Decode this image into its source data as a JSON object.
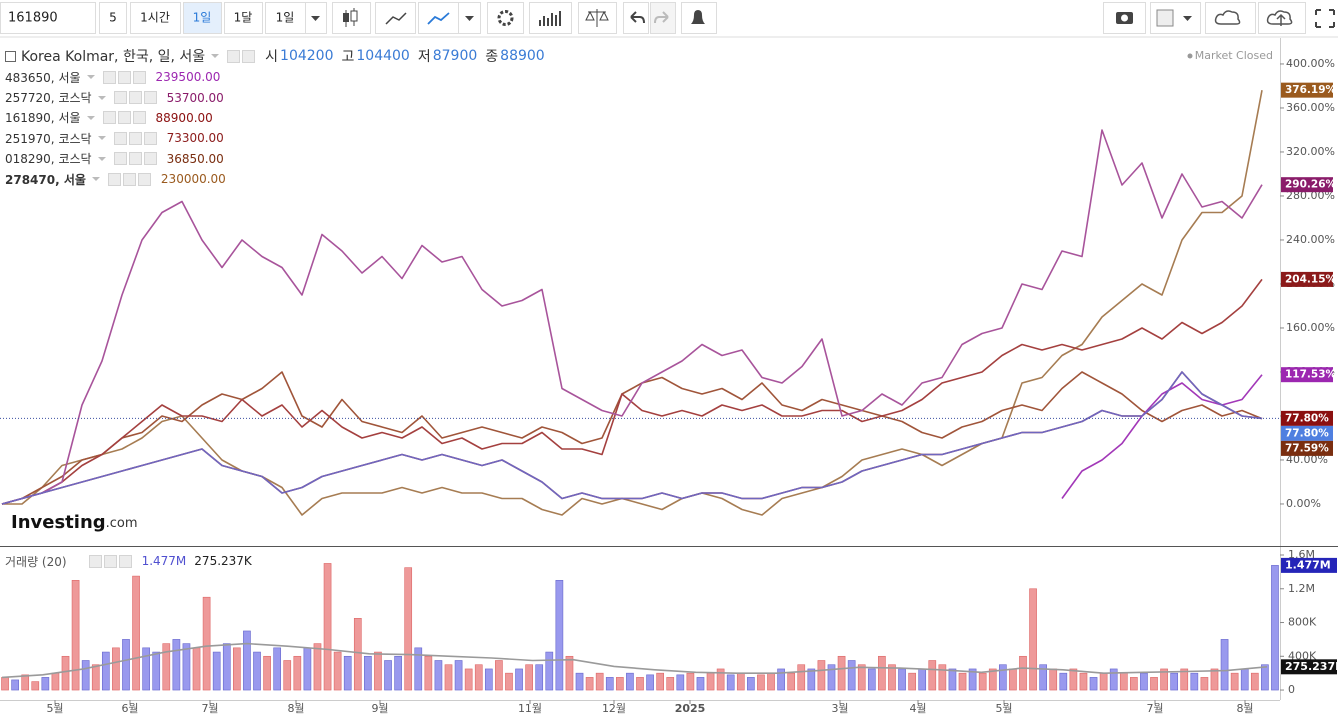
{
  "toolbar": {
    "symbol": "161890",
    "intervals": [
      "5",
      "1시간",
      "1일",
      "1달",
      "1일"
    ]
  },
  "market_status": "Market Closed",
  "logo": {
    "brand": "Investing",
    "suffix": ".com"
  },
  "chart_data": [
    {
      "type": "line",
      "ohlc": [
        {
          "label": "시",
          "value": 104200
        },
        {
          "label": "고",
          "value": 104400
        },
        {
          "label": "저",
          "value": 87900
        },
        {
          "label": "종",
          "value": 88900
        }
      ],
      "xlim": [
        -0.1,
        63.9
      ],
      "xticks": [
        {
          "value": 2.65,
          "label": "5월"
        },
        {
          "value": 6.4,
          "label": "6월"
        },
        {
          "value": 10.4,
          "label": "7월"
        },
        {
          "value": 14.7,
          "label": "8월"
        },
        {
          "value": 18.9,
          "label": "9월"
        },
        {
          "value": 26.4,
          "label": "11월"
        },
        {
          "value": 30.6,
          "label": "12월"
        },
        {
          "value": 34.4,
          "label": "2025"
        },
        {
          "value": 41.9,
          "label": "3월"
        },
        {
          "value": 45.8,
          "label": "4월"
        },
        {
          "value": 50.1,
          "label": "5월"
        },
        {
          "value": 57.65,
          "label": "7월"
        },
        {
          "value": 62.15,
          "label": "8월"
        }
      ],
      "ylim": [
        -37.3,
        423.6
      ],
      "yticks": [
        {
          "value": 0,
          "label": "0.00%"
        },
        {
          "value": 40,
          "label": "40.00%"
        },
        {
          "value": 80,
          "label": "80.00%"
        },
        {
          "value": 120,
          "label": "120.00%"
        },
        {
          "value": 160,
          "label": "160.00%"
        },
        {
          "value": 200,
          "label": "200.00%"
        },
        {
          "value": 240,
          "label": "240.00%"
        },
        {
          "value": 280,
          "label": "280.00%"
        },
        {
          "value": 320,
          "label": "320.00%"
        },
        {
          "value": 360,
          "label": "360.00%"
        },
        {
          "value": 400,
          "label": "400.00%"
        }
      ],
      "grid": false,
      "series": [
        {
          "name": "Korea Kolmar, 한국, 일, 서울",
          "color": "#6f67c0",
          "label_color": "#4f7fe0",
          "values": [
            0,
            5,
            10,
            15,
            20,
            25,
            30,
            35,
            40,
            45,
            50,
            35,
            30,
            25,
            10,
            15,
            25,
            30,
            35,
            40,
            45,
            40,
            45,
            40,
            35,
            40,
            30,
            20,
            5,
            10,
            5,
            5,
            5,
            10,
            5,
            10,
            10,
            5,
            5,
            10,
            15,
            15,
            20,
            30,
            35,
            40,
            45,
            45,
            50,
            55,
            60,
            65,
            65,
            70,
            75,
            85,
            80,
            80,
            95,
            120,
            100,
            90,
            80,
            77.8
          ],
          "value_labels": {
            "63": "77.80%"
          }
        },
        {
          "name": "483650, 서울",
          "price": "239500.00",
          "color": "#a238b8",
          "label_color": "#9c27b0",
          "values": [
            null,
            null,
            null,
            null,
            null,
            null,
            null,
            null,
            null,
            null,
            null,
            null,
            null,
            null,
            null,
            null,
            null,
            null,
            null,
            null,
            null,
            null,
            null,
            null,
            null,
            null,
            null,
            null,
            null,
            null,
            null,
            null,
            null,
            null,
            null,
            null,
            null,
            null,
            null,
            null,
            null,
            null,
            null,
            null,
            null,
            null,
            null,
            null,
            null,
            null,
            null,
            null,
            null,
            5,
            30,
            40,
            55,
            80,
            100,
            110,
            95,
            90,
            95,
            117.53
          ],
          "value_labels": {
            "63": "117.53%"
          }
        },
        {
          "name": "257720, 코스닥",
          "price": "53700.00",
          "color": "#a8549b",
          "label_color": "#8a1c6a",
          "values": [
            0,
            5,
            10,
            20,
            90,
            130,
            190,
            240,
            265,
            275,
            240,
            215,
            240,
            225,
            215,
            190,
            245,
            230,
            210,
            225,
            205,
            235,
            220,
            225,
            195,
            180,
            185,
            195,
            105,
            95,
            85,
            80,
            110,
            120,
            130,
            145,
            135,
            140,
            115,
            110,
            125,
            150,
            80,
            85,
            100,
            90,
            110,
            115,
            145,
            155,
            160,
            200,
            195,
            230,
            225,
            340,
            290,
            310,
            260,
            300,
            270,
            275,
            260,
            290.26
          ],
          "value_labels": {
            "63": "290.26%"
          }
        },
        {
          "name": "161890, 서울",
          "price": "88900.00",
          "color": "#a33a3a",
          "label_color": "#8b1010",
          "values": [
            0,
            5,
            10,
            15,
            20,
            25,
            30,
            35,
            40,
            45,
            50,
            35,
            30,
            25,
            10,
            15,
            25,
            30,
            35,
            40,
            45,
            40,
            45,
            40,
            35,
            40,
            30,
            20,
            5,
            10,
            5,
            5,
            5,
            10,
            5,
            10,
            10,
            5,
            5,
            10,
            15,
            15,
            20,
            30,
            35,
            40,
            45,
            45,
            50,
            55,
            60,
            65,
            65,
            70,
            75,
            85,
            80,
            80,
            95,
            120,
            100,
            90,
            80,
            77.8
          ],
          "value_labels": {
            "63": "77.80%"
          }
        },
        {
          "name": "251970, 코스닥",
          "price": "73300.00",
          "color": "#a4403f",
          "label_color": "#8b1a1a",
          "values": [
            0,
            5,
            10,
            20,
            35,
            45,
            60,
            75,
            90,
            80,
            80,
            75,
            95,
            80,
            90,
            70,
            85,
            70,
            60,
            65,
            60,
            70,
            55,
            60,
            50,
            55,
            55,
            65,
            50,
            50,
            45,
            100,
            85,
            80,
            85,
            80,
            90,
            85,
            90,
            80,
            80,
            85,
            85,
            75,
            80,
            85,
            95,
            110,
            115,
            120,
            135,
            145,
            140,
            145,
            140,
            145,
            150,
            160,
            150,
            165,
            155,
            165,
            180,
            204.15
          ],
          "value_labels": {
            "63": "204.15%"
          }
        },
        {
          "name": "018290, 코스닥",
          "price": "36850.00",
          "color": "#a0553a",
          "label_color": "#7a2e10",
          "values": [
            0,
            5,
            15,
            25,
            40,
            45,
            60,
            65,
            80,
            75,
            90,
            100,
            95,
            105,
            120,
            80,
            70,
            95,
            75,
            70,
            65,
            80,
            60,
            65,
            70,
            65,
            60,
            70,
            65,
            55,
            60,
            100,
            110,
            115,
            105,
            100,
            105,
            95,
            110,
            90,
            85,
            95,
            90,
            85,
            80,
            75,
            65,
            60,
            70,
            75,
            85,
            90,
            85,
            105,
            120,
            110,
            100,
            85,
            75,
            85,
            90,
            80,
            85,
            77.59
          ],
          "value_labels": {
            "63": "77.59%"
          }
        },
        {
          "name": "278470, 서울",
          "price": "230000.00",
          "color": "#a67c52",
          "label_color": "#9a5a1e",
          "values": [
            0,
            0,
            15,
            35,
            40,
            45,
            50,
            60,
            75,
            80,
            60,
            40,
            30,
            25,
            15,
            -10,
            5,
            10,
            10,
            10,
            15,
            10,
            15,
            10,
            10,
            5,
            5,
            -5,
            -10,
            5,
            0,
            5,
            0,
            -5,
            5,
            10,
            5,
            -5,
            -10,
            5,
            10,
            15,
            25,
            40,
            45,
            50,
            45,
            35,
            45,
            55,
            60,
            110,
            115,
            135,
            145,
            170,
            185,
            200,
            190,
            240,
            265,
            265,
            280,
            376.19
          ],
          "value_labels": {
            "63": "376.19%"
          }
        }
      ]
    },
    {
      "type": "bar",
      "title": "거래량 (20)",
      "ylim": [
        -118000,
        1683000
      ],
      "yticks": [
        0,
        {
          "value": 400000,
          "label": "400K"
        },
        {
          "value": 800000,
          "label": "800K"
        },
        {
          "value": 1200000,
          "label": "1.2M"
        },
        {
          "value": 1600000,
          "label": "1.6M"
        }
      ],
      "series": [
        {
          "label_color": "#2525b8",
          "values": [
            150000,
            120000,
            180000,
            100000,
            150000,
            200000,
            400000,
            1300000,
            350000,
            300000,
            450000,
            500000,
            600000,
            1350000,
            500000,
            450000,
            550000,
            600000,
            550000,
            500000,
            1100000,
            450000,
            550000,
            500000,
            700000,
            450000,
            400000,
            500000,
            350000,
            400000,
            500000,
            550000,
            1500000,
            450000,
            400000,
            850000,
            400000,
            450000,
            350000,
            400000,
            1450000,
            500000,
            400000,
            350000,
            300000,
            350000,
            250000,
            300000,
            250000,
            350000,
            200000,
            250000,
            300000,
            300000,
            450000,
            1300000,
            400000,
            200000,
            150000,
            200000,
            150000,
            150000,
            200000,
            150000,
            180000,
            200000,
            150000,
            180000,
            200000,
            150000,
            200000,
            250000,
            180000,
            200000,
            150000,
            180000,
            200000,
            250000,
            200000,
            300000,
            250000,
            350000,
            300000,
            400000,
            350000,
            300000,
            250000,
            400000,
            300000,
            250000,
            200000,
            250000,
            350000,
            300000,
            250000,
            200000,
            250000,
            200000,
            250000,
            300000,
            250000,
            400000,
            1200000,
            300000,
            250000,
            200000,
            250000,
            200000,
            150000,
            200000,
            250000,
            200000,
            150000,
            200000,
            150000,
            250000,
            200000,
            250000,
            200000,
            150000,
            250000,
            600000,
            200000,
            250000,
            200000,
            300000,
            1477000
          ],
          "colors": [
            "#e99",
            "#99e",
            "#e99",
            "#e99",
            "#99e",
            "#e99",
            "#e99",
            "#e99",
            "#99e",
            "#e99",
            "#99e",
            "#e99",
            "#99e",
            "#e99",
            "#99e",
            "#99e",
            "#e99",
            "#99e",
            "#99e",
            "#e99",
            "#e99",
            "#99e",
            "#99e",
            "#e99",
            "#99e",
            "#99e",
            "#e99",
            "#99e",
            "#e99",
            "#e99",
            "#99e",
            "#e99",
            "#e99",
            "#e99",
            "#99e",
            "#e99",
            "#99e",
            "#e99",
            "#99e",
            "#99e",
            "#e99",
            "#99e",
            "#e99",
            "#99e",
            "#e99",
            "#99e",
            "#e99",
            "#e99",
            "#99e",
            "#e99",
            "#e99",
            "#99e",
            "#e99",
            "#99e",
            "#99e",
            "#99e",
            "#e99",
            "#99e",
            "#e99",
            "#e99",
            "#99e",
            "#e99",
            "#99e",
            "#e99",
            "#99e",
            "#e99",
            "#e99",
            "#99e",
            "#e99",
            "#99e",
            "#e99",
            "#e99",
            "#99e",
            "#e99",
            "#99e",
            "#e99",
            "#e99",
            "#99e",
            "#e99",
            "#e99",
            "#99e",
            "#e99",
            "#99e",
            "#e99",
            "#99e",
            "#e99",
            "#99e",
            "#e99",
            "#e99",
            "#99e",
            "#e99",
            "#99e",
            "#e99",
            "#e99",
            "#99e",
            "#e99",
            "#99e",
            "#e99",
            "#e99",
            "#99e",
            "#e99",
            "#e99",
            "#e99",
            "#99e",
            "#e99",
            "#99e",
            "#e99",
            "#e99",
            "#99e",
            "#e99",
            "#99e",
            "#e99",
            "#e99",
            "#99e",
            "#e99",
            "#e99",
            "#99e",
            "#e99",
            "#99e",
            "#e99",
            "#e99",
            "#99e",
            "#e99",
            "#99e",
            "#e99",
            "#99e",
            "#99e"
          ],
          "value_labels": {
            "126": "1.477M"
          }
        },
        {
          "type": "line",
          "color": "#9a9a9a",
          "label_color": "#111",
          "values": [
            150000,
            180000,
            250000,
            350000,
            450000,
            520000,
            550000,
            520000,
            480000,
            430000,
            420000,
            400000,
            380000,
            350000,
            360000,
            280000,
            240000,
            210000,
            200000,
            200000,
            230000,
            270000,
            260000,
            240000,
            210000,
            260000,
            240000,
            200000,
            210000,
            220000,
            230000,
            275237
          ],
          "value_labels": {
            "31": "275.237K"
          }
        }
      ]
    }
  ]
}
